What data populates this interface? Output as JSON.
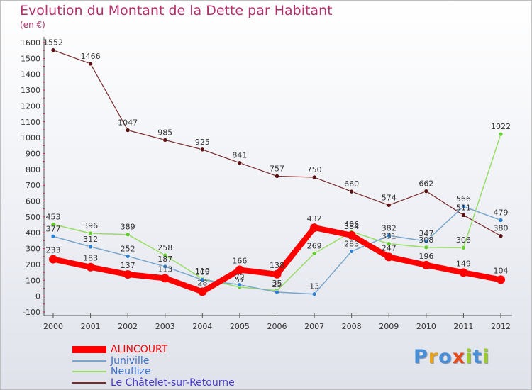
{
  "title": "Evolution du Montant de la Dette par Habitant",
  "subtitle": "(en €)",
  "logo": {
    "text": "Proxiti",
    "colors": [
      "#4a8fd6",
      "#e8a31a",
      "#4a8fd6",
      "#e84a1a",
      "#9acc2a",
      "#4a8fd6",
      "#9acc2a"
    ]
  },
  "chart_data": {
    "type": "line",
    "title": "Evolution du Montant de la Dette par Habitant",
    "ylabel": "(en €)",
    "xlabel": "",
    "ylim": [
      -100,
      1600
    ],
    "yticks": [
      -100,
      0,
      100,
      200,
      300,
      400,
      500,
      600,
      700,
      800,
      900,
      1000,
      1100,
      1200,
      1300,
      1400,
      1500,
      1600
    ],
    "x": [
      "2000",
      "2001",
      "2002",
      "2003",
      "2004",
      "2005",
      "2006",
      "2007",
      "2008",
      "2009",
      "2010",
      "2011",
      "2012"
    ],
    "legend_position": "bottom-left",
    "grid": false,
    "series": [
      {
        "name": "ALINCOURT",
        "color": "#ff0000",
        "point_color": "#ff0000",
        "width": 8,
        "marker": 6,
        "values": [
          233,
          183,
          137,
          113,
          28,
          166,
          138,
          432,
          384,
          247,
          196,
          149,
          104
        ],
        "labels": [
          "233",
          "183",
          "137",
          "113",
          "28",
          "166",
          "138",
          "432",
          "384",
          "247",
          "196",
          "149",
          "104"
        ]
      },
      {
        "name": "Juniville",
        "color": "#7aa6cc",
        "point_color": "#2f7fd0",
        "width": 1.5,
        "marker": 3,
        "values": [
          377,
          312,
          252,
          187,
          103,
          72,
          25,
          13,
          283,
          382,
          347,
          566,
          479
        ],
        "labels": [
          "377",
          "312",
          "252",
          "187",
          "103",
          "72",
          "25",
          "13",
          "283",
          "382",
          "347",
          "566",
          "479"
        ]
      },
      {
        "name": "Neuflize",
        "color": "#99dd66",
        "point_color": "#66cc33",
        "width": 1.5,
        "marker": 3,
        "values": [
          453,
          396,
          389,
          258,
          110,
          57,
          35,
          269,
          406,
          331,
          308,
          306,
          1022
        ],
        "labels": [
          "453",
          "396",
          "389",
          "258",
          "110",
          "57",
          "35",
          "269",
          "406",
          "331",
          "308",
          "306",
          "1022"
        ]
      },
      {
        "name": "Le Châtelet-sur-Retourne",
        "color": "#7a2a2a",
        "point_color": "#5a1010",
        "width": 1.2,
        "marker": 3,
        "values": [
          1552,
          1466,
          1047,
          985,
          925,
          841,
          757,
          750,
          660,
          574,
          662,
          511,
          380
        ],
        "labels": [
          "1552",
          "1466",
          "1047",
          "985",
          "925",
          "841",
          "757",
          "750",
          "660",
          "574",
          "662",
          "511",
          "380"
        ]
      }
    ]
  }
}
